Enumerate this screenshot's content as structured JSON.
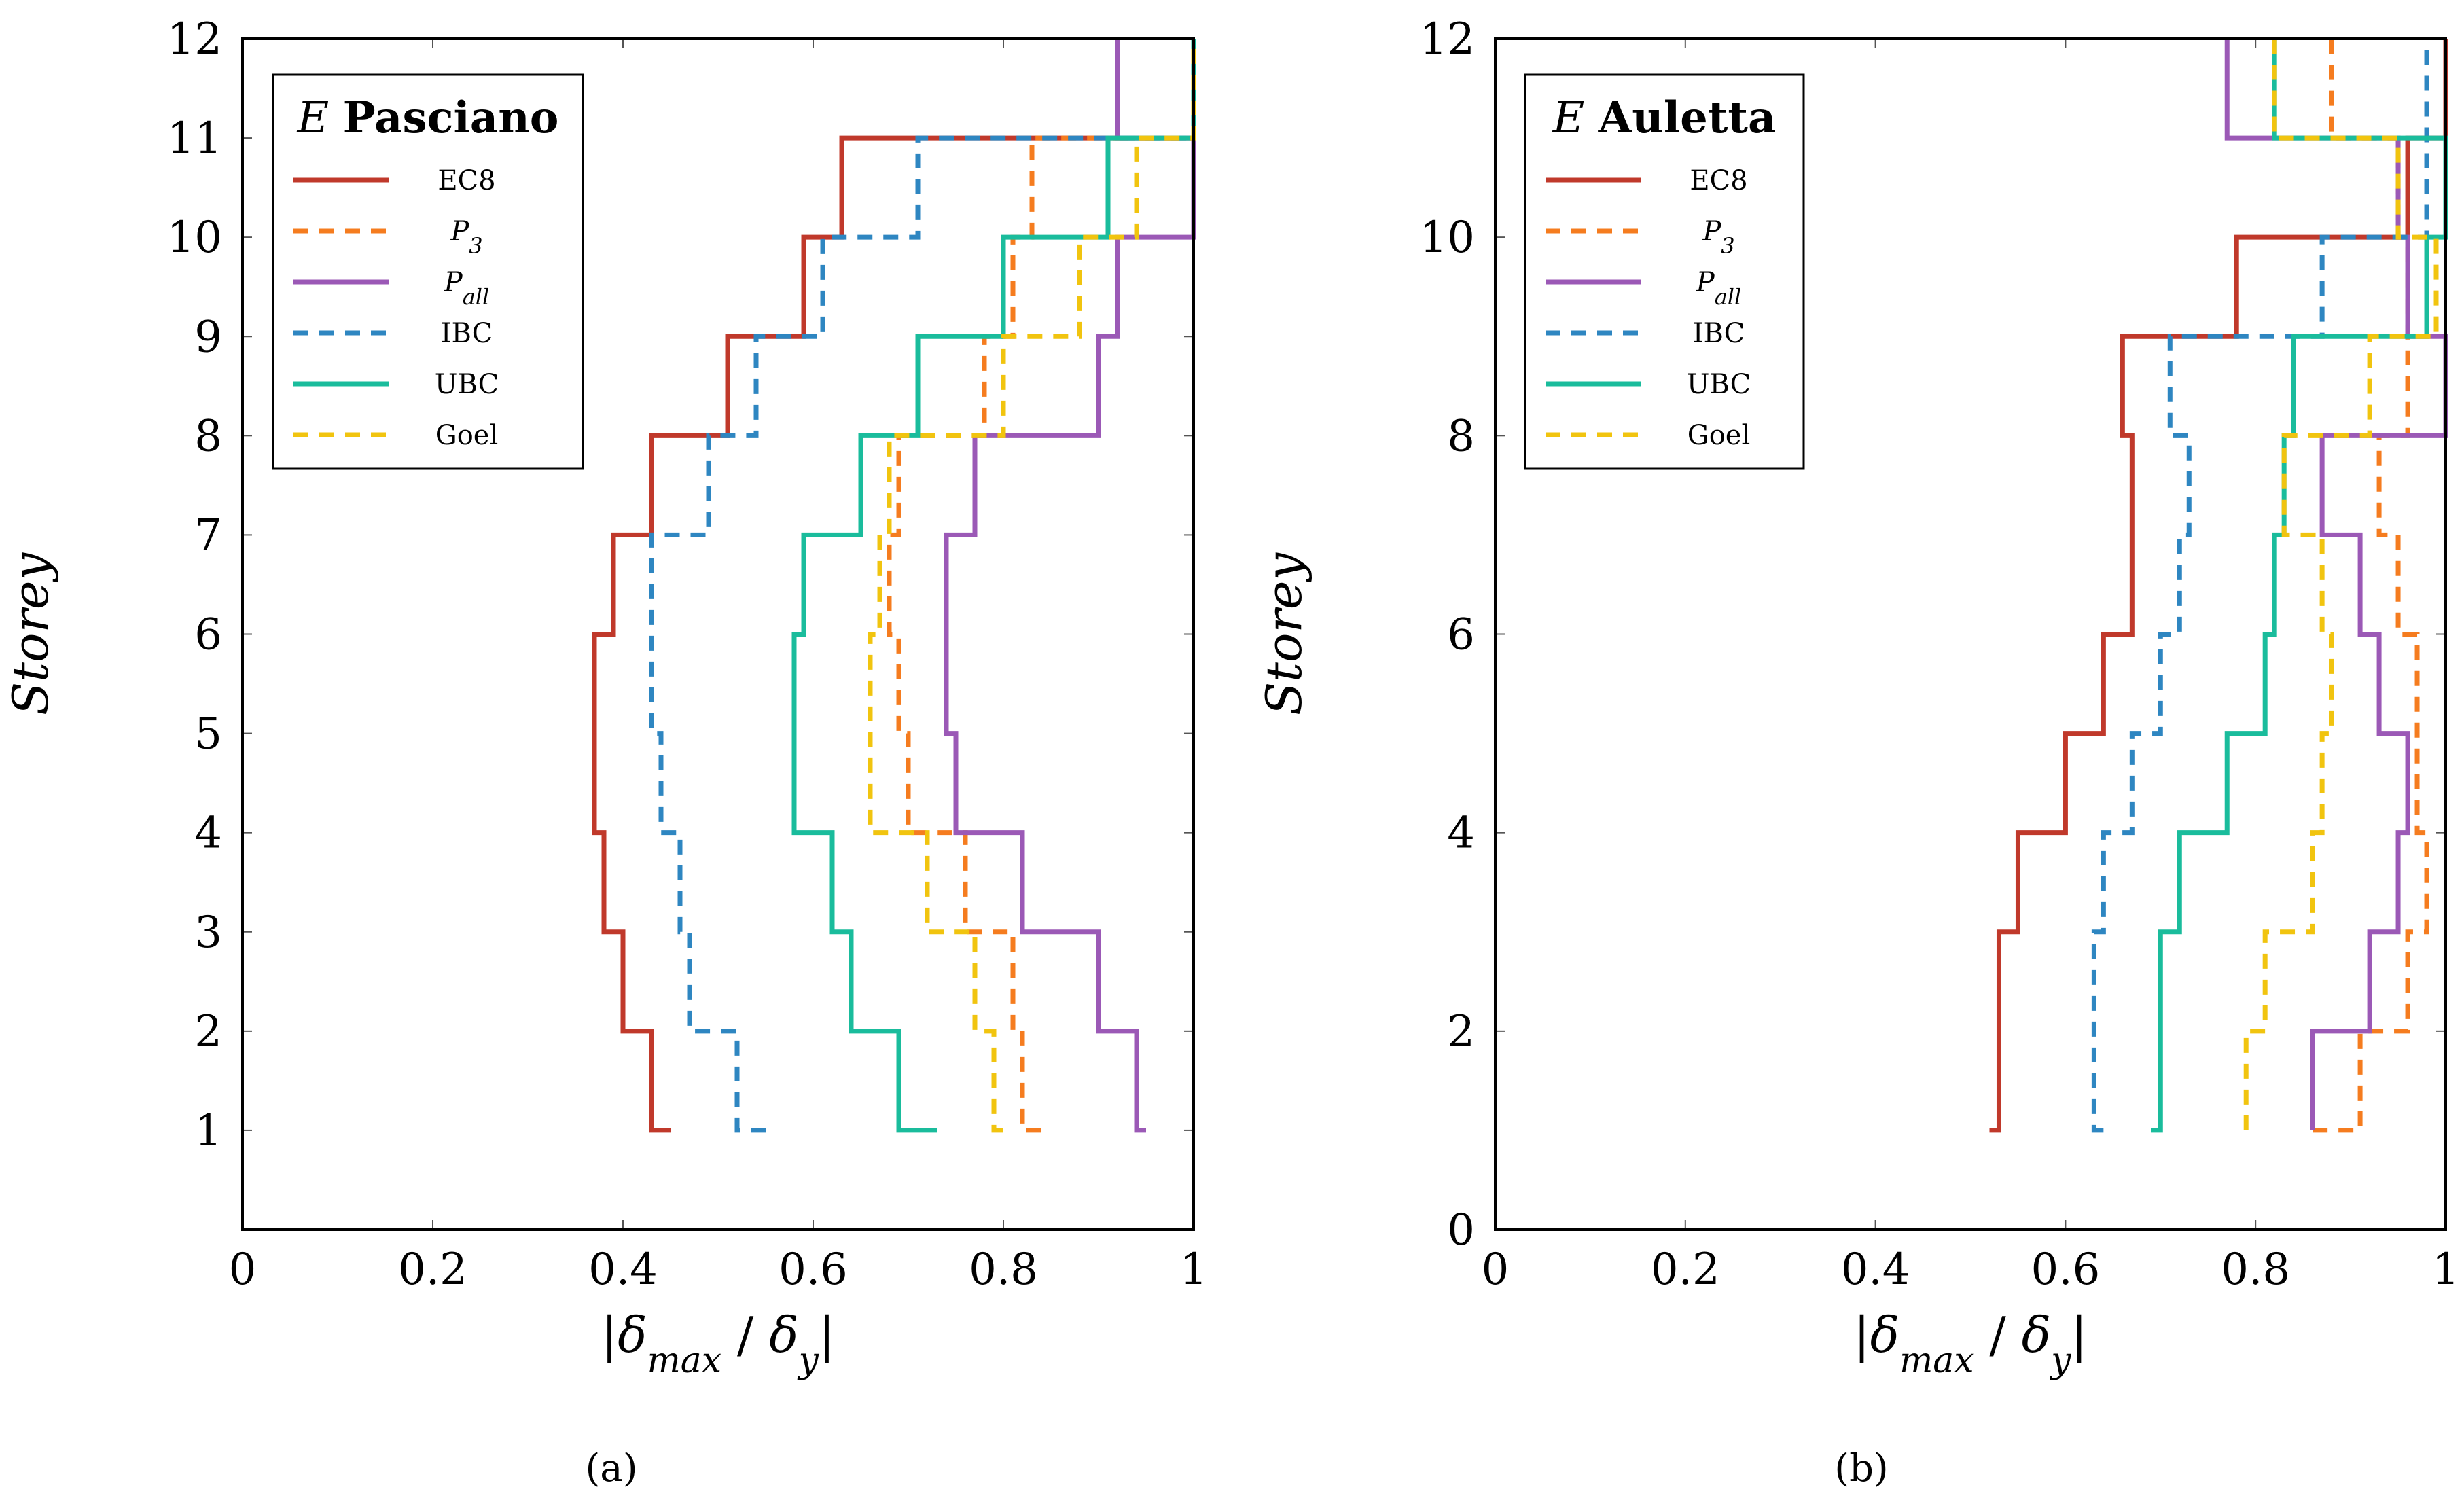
{
  "chart_data": [
    {
      "type": "line",
      "panel": "a",
      "caption": "(a)",
      "legend_title": {
        "italic": "E",
        "bold": "Pasciano"
      },
      "legend_position": "top-left",
      "xlabel": "|δmax / δy|",
      "ylabel": "Storey",
      "xlim": [
        0,
        1
      ],
      "ylim": [
        0,
        12
      ],
      "xticks": [
        "0",
        "0.2",
        "0.4",
        "0.6",
        "0.8",
        "1"
      ],
      "yticks": [
        "1",
        "2",
        "3",
        "4",
        "5",
        "6",
        "7",
        "8",
        "9",
        "10",
        "11",
        "12"
      ],
      "storeys": [
        1,
        2,
        3,
        4,
        5,
        6,
        7,
        8,
        9,
        10,
        11,
        12
      ],
      "series": [
        {
          "name": "EC8",
          "color": "#c0392b",
          "dashed": false,
          "values": [
            0.45,
            0.43,
            0.4,
            0.38,
            0.37,
            0.37,
            0.39,
            0.43,
            0.51,
            0.59,
            0.63,
            1.0
          ]
        },
        {
          "name": "P3",
          "color": "#f57c1f",
          "dashed": true,
          "values": [
            0.84,
            0.82,
            0.81,
            0.76,
            0.7,
            0.69,
            0.68,
            0.69,
            0.78,
            0.81,
            0.83,
            1.0
          ]
        },
        {
          "name": "Pall",
          "color": "#9b59b6",
          "dashed": false,
          "values": [
            0.95,
            0.94,
            0.9,
            0.82,
            0.75,
            0.74,
            0.74,
            0.77,
            0.9,
            0.92,
            1.0,
            0.92
          ]
        },
        {
          "name": "IBC",
          "color": "#2e86c1",
          "dashed": true,
          "values": [
            0.55,
            0.52,
            0.47,
            0.46,
            0.44,
            0.43,
            0.43,
            0.49,
            0.54,
            0.61,
            0.71,
            1.0
          ]
        },
        {
          "name": "UBC",
          "color": "#1abc9c",
          "dashed": false,
          "values": [
            0.73,
            0.69,
            0.64,
            0.62,
            0.58,
            0.58,
            0.59,
            0.65,
            0.71,
            0.8,
            0.91,
            1.0
          ]
        },
        {
          "name": "Goel",
          "color": "#f1c40f",
          "dashed": true,
          "values": [
            0.8,
            0.79,
            0.77,
            0.72,
            0.66,
            0.66,
            0.67,
            0.68,
            0.8,
            0.88,
            0.94,
            1.0
          ]
        }
      ]
    },
    {
      "type": "line",
      "panel": "b",
      "caption": "(b)",
      "legend_title": {
        "italic": "E",
        "bold": "Auletta"
      },
      "legend_position": "top-left",
      "xlabel": "|δmax / δy|",
      "ylabel": "Storey",
      "xlim": [
        0,
        1
      ],
      "ylim": [
        0,
        12
      ],
      "xticks": [
        "0",
        "0.2",
        "0.4",
        "0.6",
        "0.8",
        "1"
      ],
      "yticks": [
        "0",
        "2",
        "4",
        "6",
        "8",
        "10",
        "12"
      ],
      "storeys": [
        1,
        2,
        3,
        4,
        5,
        6,
        7,
        8,
        9,
        10,
        11,
        12
      ],
      "series": [
        {
          "name": "EC8",
          "color": "#c0392b",
          "dashed": false,
          "values": [
            0.52,
            0.53,
            0.53,
            0.55,
            0.6,
            0.64,
            0.67,
            0.67,
            0.66,
            0.78,
            0.96,
            1.0
          ]
        },
        {
          "name": "P3",
          "color": "#f57c1f",
          "dashed": true,
          "values": [
            0.86,
            0.91,
            0.96,
            0.98,
            0.97,
            0.97,
            0.95,
            0.93,
            0.96,
            0.96,
            0.95,
            0.88
          ]
        },
        {
          "name": "Pall",
          "color": "#9b59b6",
          "dashed": false,
          "values": [
            0.86,
            0.86,
            0.92,
            0.95,
            0.96,
            0.93,
            0.91,
            0.87,
            1.0,
            0.96,
            0.95,
            0.77
          ]
        },
        {
          "name": "IBC",
          "color": "#2e86c1",
          "dashed": true,
          "values": [
            0.64,
            0.63,
            0.63,
            0.64,
            0.67,
            0.7,
            0.72,
            0.73,
            0.71,
            0.87,
            0.98,
            0.98
          ]
        },
        {
          "name": "UBC",
          "color": "#1abc9c",
          "dashed": false,
          "values": [
            0.69,
            0.7,
            0.7,
            0.72,
            0.77,
            0.81,
            0.82,
            0.83,
            0.84,
            0.98,
            1.0,
            0.82
          ]
        },
        {
          "name": "Goel",
          "color": "#f1c40f",
          "dashed": true,
          "values": [
            0.79,
            0.79,
            0.81,
            0.86,
            0.87,
            0.88,
            0.87,
            0.83,
            0.92,
            0.99,
            0.95,
            0.82
          ]
        }
      ]
    }
  ]
}
